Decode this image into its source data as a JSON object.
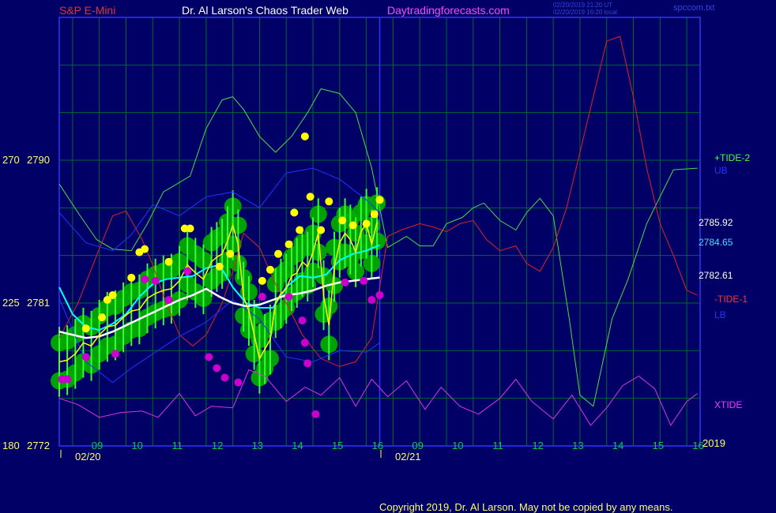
{
  "header": {
    "instrument": "S&P E-Mini",
    "site": "Dr. Al Larson's Chaos Trader Web",
    "url": "Daytradingforecasts.com",
    "stamp_utc": "02/20/2019 21:20 UT",
    "stamp_local": "02/20/2019 16:20 local",
    "file": "spccom.txt"
  },
  "footer": {
    "copyright": "Copyright 2019, Dr. Al Larson. May not be copied by any means."
  },
  "colors": {
    "background": "#000066",
    "grid": "#006633",
    "frame": "#3333ff",
    "price": "#ffff00",
    "pivot_high": "#ffff00",
    "pivot_low": "#cc00cc",
    "green_band": "#00aa00",
    "tide2": "#44dd44",
    "tide1": "#dd2222",
    "xtide": "#dd33dd",
    "ma_fast": "#00ffff",
    "ma_slow": "#ffffff",
    "band_blue": "#2233ff"
  },
  "chart_data": {
    "type": "line",
    "title": "S&P E-Mini",
    "ylim": [
      2772,
      2799
    ],
    "ylabels_left": [
      {
        "tick": "270",
        "value": "2790"
      },
      {
        "tick": "225",
        "value": "2781"
      },
      {
        "tick": "180",
        "value": "2772"
      }
    ],
    "x_hours": [
      "09",
      "10",
      "11",
      "12",
      "13",
      "14",
      "15",
      "16",
      "09",
      "10",
      "11",
      "12",
      "13",
      "14",
      "15",
      "16"
    ],
    "x_dates": [
      "02/20",
      "02/21"
    ],
    "year_label": "2019",
    "right_labels": [
      {
        "text": "+TIDE-2",
        "color": "#44ff44"
      },
      {
        "text": "UB",
        "color": "#2233ff"
      },
      {
        "text": "2785.92",
        "color": "#ffffff"
      },
      {
        "text": "2784.65",
        "color": "#44ddff"
      },
      {
        "text": "2782.61",
        "color": "#ffffff"
      },
      {
        "text": "-TIDE-1",
        "color": "#ff3333"
      },
      {
        "text": "LB",
        "color": "#2233ff"
      },
      {
        "text": "XTIDE",
        "color": "#ff33ff"
      }
    ],
    "series": [
      {
        "name": "+TIDE-2",
        "x": [
          8.5,
          9.2,
          9.9,
          10.5,
          11.2,
          11.8,
          12.4,
          12.9,
          13.4,
          14,
          14.6,
          15,
          15.4,
          16,
          16.6,
          17.2,
          17.8,
          18.3,
          19,
          19.6,
          20.2,
          20.8,
          21.5,
          22,
          22.5,
          23,
          23.6,
          24,
          24.4,
          25,
          25.6,
          26,
          26.5,
          27,
          27.6,
          28,
          28.5,
          29.2,
          29.8,
          30.5,
          31.5,
          32.4
        ],
        "values": [
          2788.5,
          2786.7,
          2785,
          2784.4,
          2784.3,
          2786,
          2788,
          2788.5,
          2789,
          2792,
          2793.8,
          2794,
          2793.2,
          2791.5,
          2790.5,
          2791.5,
          2793,
          2794.5,
          2794.2,
          2793,
          2789.5,
          2784.5,
          2785.2,
          2784.6,
          2784.6,
          2786,
          2786.4,
          2787,
          2787.3,
          2786.2,
          2785.6,
          2786.7,
          2787.6,
          2786.5,
          2780,
          2775.2,
          2774.5,
          2780,
          2782.5,
          2786,
          2789.4,
          2789.5
        ]
      },
      {
        "name": "-TIDE-1",
        "x": [
          8.5,
          9.2,
          9.9,
          10.5,
          11,
          11.6,
          12,
          12.5,
          13,
          13.5,
          14,
          14.6,
          15,
          15.4,
          16,
          16.6,
          17,
          17.6,
          18.3,
          19,
          19.6,
          20.2,
          20.8,
          21.3,
          22,
          22.5,
          23,
          23.5,
          24,
          24.5,
          25,
          25.6,
          26,
          26.5,
          27,
          27.5,
          28,
          28.5,
          29,
          29.5,
          30,
          30.5,
          31,
          31.5,
          32,
          32.4
        ],
        "values": [
          2778.8,
          2781,
          2784,
          2786.5,
          2786.8,
          2785,
          2783.4,
          2781,
          2779,
          2778.3,
          2779,
          2781,
          2783,
          2785.4,
          2784.5,
          2782.2,
          2781,
          2779,
          2777.5,
          2777,
          2777.3,
          2778.8,
          2785.2,
          2785.6,
          2786,
          2785.8,
          2785.5,
          2786,
          2786.2,
          2785,
          2784.3,
          2784.6,
          2783.5,
          2783,
          2784.5,
          2787,
          2790.5,
          2794,
          2797.5,
          2797.8,
          2794,
          2789.5,
          2786,
          2784,
          2781.8,
          2781.5
        ]
      },
      {
        "name": "UB",
        "x": [
          8.5,
          9.5,
          10.5,
          11.2,
          12,
          13,
          14,
          15,
          16,
          17,
          18,
          19,
          20,
          20.5
        ],
        "values": [
          2786.7,
          2784.8,
          2784.3,
          2785.3,
          2787.2,
          2786.5,
          2787.7,
          2788,
          2787,
          2789.2,
          2789.5,
          2788.8,
          2787.5,
          2786.7
        ]
      },
      {
        "name": "LB",
        "x": [
          8.5,
          9.5,
          10.5,
          11.2,
          12,
          13,
          14,
          15,
          16,
          17,
          18,
          19,
          20,
          20.5
        ],
        "values": [
          2781.3,
          2777.3,
          2776,
          2776.9,
          2777.8,
          2778.9,
          2779.8,
          2781.2,
          2780,
          2777.6,
          2777.3,
          2778,
          2777.9,
          2778.5
        ]
      },
      {
        "name": "MA-fast",
        "x": [
          8.5,
          9,
          9.5,
          10,
          10.5,
          11,
          11.5,
          12,
          12.5,
          13,
          13.5,
          14,
          14.5,
          15,
          15.5,
          16,
          16.5,
          17,
          17.5,
          18,
          18.5,
          19,
          19.5,
          20,
          20.5
        ],
        "values": [
          2782,
          2780.3,
          2779.5,
          2779.3,
          2779.7,
          2780.3,
          2781.4,
          2782.2,
          2782.5,
          2782.6,
          2782.7,
          2783.2,
          2783.4,
          2782,
          2781,
          2780.7,
          2780.7,
          2782,
          2782.7,
          2782.6,
          2782.8,
          2783.7,
          2784.1,
          2784.3,
          2784.65
        ]
      },
      {
        "name": "MA-slow",
        "x": [
          8.5,
          9,
          9.5,
          10,
          10.5,
          11,
          11.5,
          12,
          12.5,
          13,
          13.5,
          14,
          14.5,
          15,
          15.5,
          16,
          16.5,
          17,
          17.5,
          18,
          18.5,
          19,
          19.5,
          20,
          20.5
        ],
        "values": [
          2779.2,
          2779,
          2778.8,
          2778.9,
          2779.2,
          2779.6,
          2780,
          2780.4,
          2780.8,
          2781.2,
          2781.5,
          2781.9,
          2781.4,
          2781,
          2780.8,
          2780.9,
          2781.2,
          2781.5,
          2781.6,
          2781.8,
          2782.1,
          2782.3,
          2782.4,
          2782.5,
          2782.61
        ]
      },
      {
        "name": "XTIDE",
        "x": [
          8.5,
          9.2,
          10,
          10.8,
          11.6,
          12.2,
          13,
          13.6,
          14.2,
          15,
          15.6,
          16.2,
          17,
          17.7,
          18.3,
          19,
          19.6,
          20.2,
          20.8,
          21.5,
          22.2,
          22.8,
          23.5,
          24.2,
          25,
          25.6,
          26.2,
          27,
          27.7,
          28.4,
          29,
          29.6,
          30.2,
          30.8,
          31.4,
          32,
          32.4
        ],
        "values": [
          2775,
          2774.6,
          2773.8,
          2774.1,
          2774.2,
          2773.8,
          2775.3,
          2773.9,
          2774.5,
          2774.4,
          2776.8,
          2776.4,
          2774.8,
          2775.7,
          2775.2,
          2776.3,
          2774.5,
          2776.2,
          2775.1,
          2776.1,
          2774.3,
          2775.7,
          2774.5,
          2774,
          2775,
          2776.2,
          2774.8,
          2773.7,
          2775.2,
          2773.3,
          2774.4,
          2775.8,
          2776.4,
          2775.6,
          2773.3,
          2774.8,
          2775.3
        ]
      },
      {
        "name": "Price",
        "x": [
          8.5,
          8.8,
          9.1,
          9.4,
          9.7,
          10,
          10.3,
          10.6,
          10.9,
          11.2,
          11.5,
          11.8,
          12.1,
          12.4,
          12.7,
          13,
          13.3,
          13.6,
          13.9,
          14.2,
          14.4,
          14.6,
          14.8,
          15,
          15.2,
          15.4,
          15.6,
          15.8,
          16,
          16.2,
          16.4,
          16.6,
          16.8,
          17,
          17.2,
          17.4,
          17.6,
          17.8,
          18,
          18.2,
          18.4,
          18.6,
          18.8,
          19,
          19.2,
          19.4,
          19.6,
          19.8,
          20,
          20.2,
          20.4
        ],
        "values": [
          2777.3,
          2777.4,
          2777.8,
          2778.5,
          2778.3,
          2779,
          2779.5,
          2779.6,
          2780.1,
          2780.5,
          2780.6,
          2781.3,
          2781.6,
          2781.8,
          2781.9,
          2782.4,
          2783.4,
          2782.9,
          2782.5,
          2783.6,
          2783.9,
          2784.1,
          2784.9,
          2785.9,
          2784.7,
          2781.4,
          2780.5,
          2779,
          2777.5,
          2778.1,
          2778.7,
          2781,
          2781.6,
          2781.9,
          2782.7,
          2782.9,
          2783.6,
          2783.3,
          2784.2,
          2785.4,
          2781.5,
          2779.6,
          2783.3,
          2784.8,
          2785.4,
          2785,
          2784.2,
          2785.5,
          2786,
          2784.7,
          2786.1
        ]
      }
    ],
    "pivots_high": [
      {
        "x": 9.5,
        "y": 2779.4
      },
      {
        "x": 10.1,
        "y": 2780.1
      },
      {
        "x": 10.3,
        "y": 2781.2
      },
      {
        "x": 10.5,
        "y": 2781.5
      },
      {
        "x": 11.2,
        "y": 2782.6
      },
      {
        "x": 11.5,
        "y": 2784.2
      },
      {
        "x": 11.7,
        "y": 2784.4
      },
      {
        "x": 12.6,
        "y": 2783.6
      },
      {
        "x": 13.2,
        "y": 2785.7
      },
      {
        "x": 13.4,
        "y": 2785.7
      },
      {
        "x": 14.5,
        "y": 2783.3
      },
      {
        "x": 14.9,
        "y": 2784.1
      },
      {
        "x": 16.1,
        "y": 2782.4
      },
      {
        "x": 16.4,
        "y": 2783.1
      },
      {
        "x": 16.7,
        "y": 2784.1
      },
      {
        "x": 17.1,
        "y": 2784.7
      },
      {
        "x": 17.3,
        "y": 2786.7
      },
      {
        "x": 17.5,
        "y": 2785.6
      },
      {
        "x": 17.7,
        "y": 2791.5
      },
      {
        "x": 17.9,
        "y": 2787.7
      },
      {
        "x": 18.3,
        "y": 2785.6
      },
      {
        "x": 18.6,
        "y": 2787.4
      },
      {
        "x": 19.1,
        "y": 2786.2
      },
      {
        "x": 19.5,
        "y": 2785.9
      },
      {
        "x": 20,
        "y": 2786
      },
      {
        "x": 20.3,
        "y": 2786.6
      },
      {
        "x": 20.5,
        "y": 2787.5
      }
    ],
    "pivots_low": [
      {
        "x": 8.6,
        "y": 2776.2
      },
      {
        "x": 8.8,
        "y": 2776.2
      },
      {
        "x": 9.5,
        "y": 2777.6
      },
      {
        "x": 10.6,
        "y": 2777.8
      },
      {
        "x": 11.7,
        "y": 2782.5
      },
      {
        "x": 12.1,
        "y": 2782.4
      },
      {
        "x": 12.6,
        "y": 2781.2
      },
      {
        "x": 13.3,
        "y": 2783
      },
      {
        "x": 14.1,
        "y": 2777.6
      },
      {
        "x": 14.4,
        "y": 2776.9
      },
      {
        "x": 14.7,
        "y": 2776.3
      },
      {
        "x": 15.2,
        "y": 2776
      },
      {
        "x": 16.1,
        "y": 2781.4
      },
      {
        "x": 17.1,
        "y": 2781.4
      },
      {
        "x": 17.6,
        "y": 2779.9
      },
      {
        "x": 17.7,
        "y": 2778.5
      },
      {
        "x": 17.8,
        "y": 2777.2
      },
      {
        "x": 18.1,
        "y": 2774
      },
      {
        "x": 19.2,
        "y": 2782.3
      },
      {
        "x": 19.9,
        "y": 2782.4
      },
      {
        "x": 20.2,
        "y": 2781.2
      },
      {
        "x": 20.5,
        "y": 2781.5
      }
    ]
  }
}
